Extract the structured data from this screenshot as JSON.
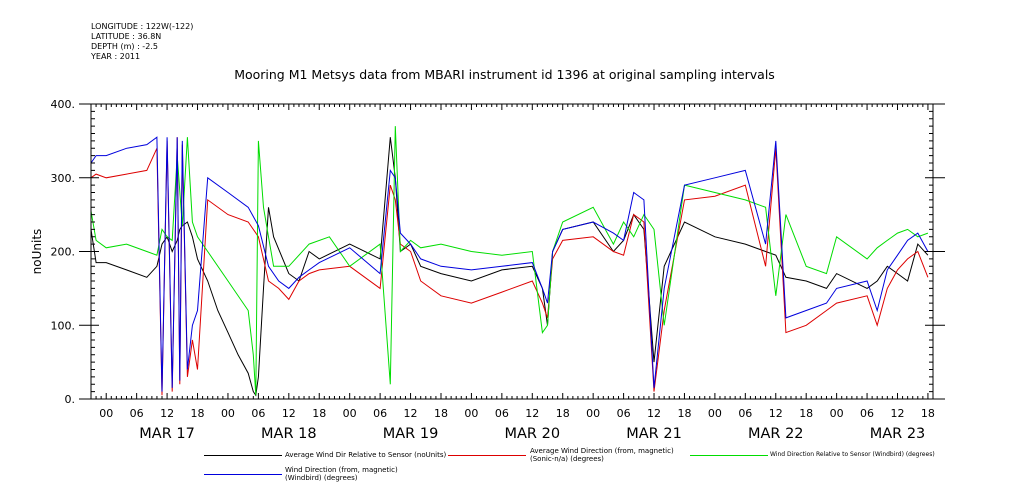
{
  "metadata": {
    "longitude": "LONGITUDE : 122W(-122)",
    "latitude": "LATITUDE : 36.8N",
    "depth": "DEPTH (m) : -2.5",
    "year": "YEAR : 2011"
  },
  "chart_data": {
    "type": "line",
    "title": "Mooring M1 Metsys data from MBARI instrument id 1396 at original sampling intervals",
    "ylabel": "noUnits",
    "xlabel": "",
    "ylim": [
      0,
      400
    ],
    "yticks": [
      0,
      100,
      200,
      300,
      400
    ],
    "ytick_labels": [
      "0.",
      "100.",
      "200.",
      "300.",
      "400."
    ],
    "xlim_hours": [
      -3,
      163
    ],
    "hour_ticks": [
      0,
      6,
      12,
      18,
      24,
      30,
      36,
      42,
      48,
      54,
      60,
      66,
      72,
      78,
      84,
      90,
      96,
      102,
      108,
      114,
      120,
      126,
      132,
      138,
      144,
      150,
      156,
      162
    ],
    "hour_tick_labels": [
      "00",
      "06",
      "12",
      "18",
      "00",
      "06",
      "12",
      "18",
      "00",
      "06",
      "12",
      "18",
      "00",
      "06",
      "12",
      "18",
      "00",
      "06",
      "12",
      "18",
      "00",
      "06",
      "12",
      "18",
      "00",
      "06",
      "12",
      "18"
    ],
    "day_labels": [
      "MAR 17",
      "MAR 18",
      "MAR 19",
      "MAR 20",
      "MAR 21",
      "MAR 22",
      "MAR 23"
    ],
    "day_label_hours": [
      12,
      36,
      60,
      84,
      108,
      132,
      156
    ],
    "x_units": "hours since 00 MAR 17 2011",
    "series": [
      {
        "name": "Average Wind Dir Relative to Sensor (noUnits)",
        "color": "#000000",
        "x": [
          -3,
          -2,
          0,
          4,
          8,
          10,
          11,
          12,
          13,
          14,
          14.5,
          15,
          16,
          17,
          18,
          20,
          22,
          24,
          26,
          28,
          29,
          29.5,
          30,
          31,
          32,
          33,
          36,
          38,
          40,
          42,
          48,
          54,
          56,
          57,
          58,
          60,
          62,
          66,
          72,
          78,
          84,
          86,
          87,
          88,
          90,
          96,
          100,
          102,
          104,
          106,
          108,
          110,
          114,
          120,
          126,
          130,
          132,
          134,
          138,
          142,
          144,
          150,
          152,
          154,
          156,
          158,
          160,
          162
        ],
        "y": [
          230,
          185,
          185,
          175,
          165,
          180,
          210,
          220,
          200,
          215,
          230,
          235,
          240,
          220,
          190,
          160,
          120,
          90,
          60,
          35,
          10,
          5,
          30,
          150,
          260,
          220,
          170,
          160,
          200,
          190,
          210,
          190,
          355,
          300,
          200,
          210,
          180,
          170,
          160,
          175,
          180,
          150,
          100,
          200,
          230,
          240,
          200,
          215,
          250,
          230,
          50,
          180,
          240,
          220,
          210,
          200,
          195,
          165,
          160,
          150,
          170,
          150,
          160,
          180,
          170,
          160,
          210,
          195
        ]
      },
      {
        "name": "Average Wind Direction (from, magnetic) (Sonic-n/a) (degrees)",
        "color": "#dd0000",
        "x": [
          -3,
          -2,
          0,
          4,
          8,
          10,
          11,
          12,
          13,
          14,
          14.5,
          15,
          16,
          17,
          18,
          20,
          24,
          28,
          30,
          32,
          34,
          36,
          38,
          40,
          42,
          48,
          54,
          56,
          57,
          58,
          60,
          62,
          66,
          72,
          78,
          84,
          86,
          87,
          88,
          90,
          96,
          100,
          102,
          104,
          106,
          108,
          110,
          114,
          120,
          126,
          130,
          132,
          134,
          138,
          142,
          144,
          150,
          152,
          154,
          156,
          158,
          160,
          162
        ],
        "y": [
          300,
          305,
          300,
          305,
          310,
          340,
          5,
          350,
          10,
          355,
          20,
          345,
          30,
          80,
          40,
          270,
          250,
          240,
          220,
          160,
          150,
          135,
          160,
          170,
          175,
          180,
          150,
          290,
          270,
          210,
          200,
          160,
          140,
          130,
          145,
          160,
          130,
          110,
          190,
          215,
          220,
          200,
          195,
          250,
          240,
          10,
          120,
          270,
          275,
          290,
          180,
          340,
          90,
          100,
          120,
          130,
          140,
          100,
          150,
          175,
          190,
          200,
          165
        ]
      },
      {
        "name": "Wind Direction Relative to Sensor (Windbird) (degrees)",
        "color": "#00dd00",
        "x": [
          -3,
          -2,
          0,
          4,
          8,
          10,
          11,
          12,
          13,
          14,
          15,
          16,
          17,
          18,
          20,
          24,
          28,
          29,
          29.5,
          30,
          31,
          32,
          33,
          36,
          40,
          44,
          48,
          54,
          56,
          57,
          58,
          60,
          62,
          66,
          72,
          78,
          84,
          86,
          87,
          88,
          90,
          96,
          100,
          102,
          104,
          106,
          108,
          110,
          114,
          120,
          126,
          130,
          132,
          134,
          138,
          142,
          144,
          150,
          152,
          154,
          156,
          158,
          160,
          162
        ],
        "y": [
          255,
          215,
          205,
          210,
          200,
          195,
          230,
          220,
          215,
          330,
          235,
          355,
          240,
          220,
          200,
          160,
          120,
          60,
          5,
          350,
          260,
          220,
          180,
          180,
          210,
          220,
          180,
          210,
          20,
          370,
          200,
          215,
          205,
          210,
          200,
          195,
          200,
          90,
          100,
          200,
          240,
          260,
          210,
          240,
          220,
          250,
          230,
          100,
          290,
          280,
          270,
          260,
          140,
          250,
          180,
          170,
          220,
          190,
          205,
          215,
          225,
          230,
          220,
          225
        ]
      },
      {
        "name": "Wind Direction (from, magnetic) (Windbird) (degrees)",
        "color": "#0000dd",
        "x": [
          -3,
          -2,
          0,
          4,
          8,
          10,
          11,
          12,
          13,
          14,
          14.5,
          15,
          16,
          17,
          18,
          20,
          24,
          28,
          30,
          32,
          34,
          36,
          38,
          40,
          42,
          48,
          54,
          56,
          57,
          58,
          60,
          62,
          66,
          72,
          78,
          84,
          86,
          87,
          88,
          90,
          96,
          100,
          102,
          104,
          106,
          108,
          110,
          114,
          120,
          126,
          130,
          132,
          134,
          138,
          142,
          144,
          150,
          152,
          154,
          156,
          158,
          160,
          162
        ],
        "y": [
          320,
          330,
          330,
          340,
          345,
          355,
          10,
          355,
          15,
          355,
          25,
          350,
          40,
          100,
          120,
          300,
          280,
          260,
          235,
          180,
          160,
          150,
          165,
          175,
          185,
          205,
          170,
          310,
          300,
          225,
          210,
          190,
          180,
          175,
          180,
          185,
          150,
          130,
          200,
          230,
          240,
          225,
          215,
          280,
          270,
          15,
          150,
          290,
          300,
          310,
          210,
          350,
          110,
          120,
          130,
          150,
          160,
          120,
          175,
          195,
          215,
          225,
          200
        ]
      }
    ],
    "legend": {
      "placement": "bottom",
      "entries": [
        {
          "label": "Average Wind Dir Relative to Sensor (noUnits)",
          "color": "#000000"
        },
        {
          "label": "Average Wind Direction (from, magnetic) (Sonic-n/a) (degrees)",
          "color": "#dd0000"
        },
        {
          "label": "Wind Direction Relative to Sensor (Windbird) (degrees)",
          "color": "#00dd00"
        },
        {
          "label": "Wind Direction (from, magnetic) (Windbird) (degrees)",
          "color": "#0000dd"
        }
      ]
    },
    "grid": false
  }
}
